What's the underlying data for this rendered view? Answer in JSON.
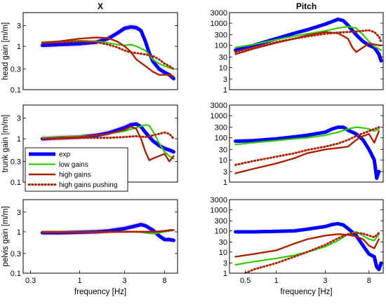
{
  "figure": {
    "columns": [
      "X",
      "Pitch"
    ],
    "xlabel": "frequency [Hz]",
    "ylabels": [
      "head gain [m/m]",
      "trunk gain [m/m]",
      "pelvis gain [m/m]"
    ]
  },
  "colors": {
    "exp": "#0000ff",
    "low gains": "#33cc00",
    "high gains": "#aa2200",
    "high gains pushing": "#aa2200",
    "band": "#ffccee"
  },
  "legend": {
    "placement": "left, middle row",
    "entries": [
      "exp",
      "low gains",
      "high gains",
      "high gains pushing"
    ]
  },
  "chart_data": [
    {
      "type": "line",
      "row": 0,
      "col": 0,
      "title": "X",
      "ylabel": "head gain [m/m]",
      "xlabel": "",
      "xscale": "log",
      "yscale": "log",
      "xlim": [
        0.25,
        11
      ],
      "ylim": [
        0.1,
        6
      ],
      "xticks": [],
      "yticks": [
        0.1,
        0.3,
        1,
        3
      ],
      "ytick_labels": [
        "0.1",
        "0.3",
        "1",
        "3"
      ],
      "series": [
        {
          "name": "exp",
          "x": [
            0.4,
            0.6,
            1,
            1.5,
            2,
            2.5,
            3,
            3.5,
            4,
            4.5,
            5,
            5.5,
            6,
            7,
            8,
            9,
            10
          ],
          "y": [
            1.05,
            1.1,
            1.15,
            1.25,
            1.5,
            2.0,
            2.6,
            2.8,
            2.7,
            2.3,
            1.3,
            0.7,
            0.45,
            0.3,
            0.25,
            0.22,
            0.18
          ]
        },
        {
          "name": "low gains",
          "x": [
            0.4,
            0.6,
            1,
            1.5,
            2,
            2.5,
            3,
            3.5,
            4,
            5,
            6,
            7,
            8,
            9,
            10
          ],
          "y": [
            1.25,
            1.3,
            1.35,
            1.3,
            1.2,
            1.1,
            1.05,
            1.1,
            1.0,
            0.8,
            0.5,
            0.4,
            0.35,
            0.32,
            0.3
          ]
        },
        {
          "name": "high gains",
          "x": [
            0.4,
            0.6,
            1,
            1.5,
            2,
            2.5,
            3,
            3.5,
            4,
            5,
            6,
            7,
            8,
            9,
            10
          ],
          "y": [
            1.2,
            1.3,
            1.5,
            1.6,
            1.55,
            1.3,
            1.0,
            0.75,
            0.5,
            0.35,
            0.26,
            0.22,
            0.22,
            0.22,
            0.2
          ]
        },
        {
          "name": "high gains pushing",
          "x": [
            0.4,
            0.6,
            1,
            1.5,
            2,
            2.5,
            3,
            3.5,
            4,
            5,
            6,
            7,
            8,
            9,
            10
          ],
          "y": [
            1.2,
            1.25,
            1.3,
            1.25,
            1.1,
            0.95,
            0.8,
            0.72,
            0.7,
            0.65,
            0.6,
            0.5,
            0.4,
            0.35,
            0.3
          ]
        }
      ]
    },
    {
      "type": "line",
      "row": 0,
      "col": 1,
      "title": "Pitch",
      "ylabel": "",
      "xlabel": "",
      "xscale": "log",
      "yscale": "log",
      "xlim": [
        0.35,
        11
      ],
      "ylim": [
        1,
        3000
      ],
      "xticks": [],
      "yticks": [
        1,
        3,
        10,
        30,
        100,
        300,
        1000,
        3000
      ],
      "ytick_labels": [
        "1",
        "3",
        "10",
        "30",
        "100",
        "300",
        "1000",
        "3000"
      ],
      "series": [
        {
          "name": "exp",
          "x": [
            0.4,
            0.6,
            1,
            1.5,
            2,
            3,
            4,
            4.5,
            5,
            6,
            7,
            8,
            9,
            10,
            10.5
          ],
          "y": [
            60,
            100,
            200,
            350,
            500,
            900,
            1500,
            1300,
            800,
            300,
            150,
            100,
            80,
            40,
            20
          ]
        },
        {
          "name": "low gains",
          "x": [
            0.4,
            0.6,
            1,
            1.5,
            2,
            3,
            4,
            5,
            6,
            7,
            8,
            9,
            10,
            10.5
          ],
          "y": [
            80,
            110,
            180,
            260,
            330,
            450,
            600,
            700,
            600,
            300,
            150,
            90,
            70,
            60
          ]
        },
        {
          "name": "high gains",
          "x": [
            0.4,
            0.6,
            1,
            1.5,
            2,
            3,
            4,
            5,
            5.5,
            6,
            7,
            8,
            9,
            10,
            10.5
          ],
          "y": [
            40,
            70,
            130,
            200,
            280,
            400,
            350,
            200,
            80,
            50,
            80,
            120,
            110,
            100,
            100
          ]
        },
        {
          "name": "high gains pushing",
          "x": [
            0.4,
            0.6,
            1,
            1.5,
            2,
            3,
            4,
            5,
            6,
            7,
            8,
            9,
            10,
            10.5
          ],
          "y": [
            50,
            80,
            140,
            200,
            250,
            330,
            380,
            400,
            420,
            450,
            480,
            400,
            250,
            150
          ]
        }
      ]
    },
    {
      "type": "line",
      "row": 1,
      "col": 0,
      "title": "",
      "ylabel": "trunk gain [m/m]",
      "xlabel": "",
      "xscale": "log",
      "yscale": "log",
      "xlim": [
        0.25,
        11
      ],
      "ylim": [
        0.1,
        6
      ],
      "xticks": [],
      "yticks": [
        0.1,
        0.3,
        1,
        3
      ],
      "ytick_labels": [
        "0.1",
        "0.3",
        "1",
        "3"
      ],
      "series": [
        {
          "name": "exp",
          "x": [
            0.4,
            0.6,
            1,
            1.5,
            2,
            3,
            3.5,
            4,
            4.5,
            5,
            6,
            7,
            8,
            9,
            10
          ],
          "y": [
            1.0,
            1.05,
            1.1,
            1.2,
            1.35,
            1.8,
            2.1,
            2.2,
            1.9,
            1.4,
            0.9,
            0.7,
            0.6,
            0.55,
            0.5
          ]
        },
        {
          "name": "low gains",
          "x": [
            0.4,
            0.6,
            1,
            1.5,
            2,
            3,
            4,
            5,
            5.5,
            6,
            7,
            8,
            9,
            10
          ],
          "y": [
            1.05,
            1.1,
            1.15,
            1.2,
            1.3,
            1.5,
            1.8,
            2.1,
            2.0,
            1.5,
            0.8,
            0.5,
            0.4,
            0.35
          ]
        },
        {
          "name": "high gains",
          "x": [
            0.4,
            0.6,
            1,
            1.5,
            2,
            3,
            3.5,
            4,
            4.5,
            5,
            5.5,
            6,
            7,
            8,
            9,
            10
          ],
          "y": [
            1.0,
            1.05,
            1.1,
            1.2,
            1.3,
            1.6,
            1.9,
            1.7,
            1.0,
            0.5,
            0.32,
            0.35,
            0.4,
            0.45,
            0.3,
            0.4
          ]
        },
        {
          "name": "high gains pushing",
          "x": [
            0.4,
            0.6,
            1,
            1.5,
            2,
            3,
            4,
            5,
            6,
            7,
            8,
            9,
            10
          ],
          "y": [
            1.0,
            1.0,
            1.05,
            1.05,
            1.05,
            1.1,
            1.15,
            1.1,
            1.2,
            1.3,
            1.4,
            1.3,
            1.0
          ]
        }
      ]
    },
    {
      "type": "line",
      "row": 1,
      "col": 1,
      "title": "",
      "ylabel": "",
      "xlabel": "",
      "xscale": "log",
      "yscale": "log",
      "xlim": [
        0.35,
        11
      ],
      "ylim": [
        1,
        3000
      ],
      "xticks": [],
      "yticks": [
        1,
        3,
        10,
        30,
        100,
        300,
        1000,
        3000
      ],
      "ytick_labels": [
        "1",
        "3",
        "10",
        "30",
        "100",
        "300",
        "1000",
        "3000"
      ],
      "series": [
        {
          "name": "exp",
          "x": [
            0.4,
            0.6,
            1,
            1.5,
            2,
            3,
            3.5,
            4,
            4.5,
            5,
            6,
            7,
            8,
            9,
            9.5,
            10
          ],
          "y": [
            70,
            75,
            90,
            110,
            130,
            180,
            250,
            300,
            300,
            220,
            150,
            80,
            30,
            10,
            1.5,
            3
          ]
        },
        {
          "name": "low gains",
          "x": [
            0.4,
            0.6,
            1,
            1.5,
            2,
            3,
            4,
            5,
            6,
            7,
            8,
            9,
            10
          ],
          "y": [
            50,
            60,
            75,
            90,
            100,
            130,
            180,
            250,
            300,
            280,
            250,
            200,
            250
          ]
        },
        {
          "name": "high gains",
          "x": [
            0.4,
            0.6,
            1,
            1.5,
            2,
            3,
            4,
            5,
            6,
            7,
            8,
            9,
            10
          ],
          "y": [
            2.5,
            4,
            7,
            12,
            20,
            30,
            35,
            40,
            80,
            120,
            150,
            60,
            200
          ]
        },
        {
          "name": "high gains pushing",
          "x": [
            0.4,
            0.6,
            1,
            1.5,
            2,
            3,
            4,
            5,
            6,
            7,
            8,
            9,
            10
          ],
          "y": [
            6,
            9,
            14,
            20,
            28,
            40,
            55,
            80,
            120,
            160,
            200,
            250,
            300
          ]
        }
      ]
    },
    {
      "type": "line",
      "row": 2,
      "col": 0,
      "title": "",
      "ylabel": "pelvis gain [m/m]",
      "xlabel": "frequency [Hz]",
      "xscale": "log",
      "yscale": "log",
      "xlim": [
        0.25,
        11
      ],
      "ylim": [
        0.1,
        6
      ],
      "xticks": [
        0.3,
        1,
        3,
        8
      ],
      "xtick_labels": [
        "0.3",
        "1",
        "3",
        "8"
      ],
      "yticks": [
        0.1,
        0.3,
        1,
        3
      ],
      "ytick_labels": [
        "0.1",
        "0.3",
        "1",
        "3"
      ],
      "series": [
        {
          "name": "exp",
          "x": [
            0.4,
            0.6,
            1,
            1.5,
            2,
            3,
            4,
            4.5,
            5,
            6,
            7,
            8,
            9,
            10
          ],
          "y": [
            0.95,
            0.95,
            0.98,
            1.0,
            1.05,
            1.2,
            1.4,
            1.5,
            1.4,
            1.1,
            0.8,
            0.65,
            0.65,
            0.62
          ]
        },
        {
          "name": "low gains",
          "x": [
            0.4,
            0.6,
            1,
            1.5,
            2,
            3,
            4,
            5,
            6,
            7,
            8,
            9,
            10
          ],
          "y": [
            1.0,
            1.0,
            1.0,
            1.0,
            1.0,
            1.0,
            1.0,
            0.95,
            0.9,
            0.95,
            1.0,
            1.05,
            1.1
          ]
        },
        {
          "name": "high gains",
          "x": [
            0.4,
            0.6,
            1,
            1.5,
            2,
            3,
            4,
            5,
            6,
            7,
            8,
            9,
            10
          ],
          "y": [
            0.98,
            0.98,
            0.98,
            0.99,
            1.0,
            1.0,
            1.0,
            1.0,
            1.0,
            1.02,
            1.05,
            1.1,
            1.1
          ]
        },
        {
          "name": "high gains pushing",
          "x": [
            0.4,
            0.6,
            1,
            1.5,
            2,
            3,
            4,
            5,
            6,
            7,
            8,
            9,
            10
          ],
          "y": [
            0.98,
            0.98,
            0.98,
            0.98,
            0.99,
            1.0,
            1.0,
            1.0,
            1.0,
            1.02,
            1.05,
            1.08,
            1.1
          ]
        }
      ]
    },
    {
      "type": "line",
      "row": 2,
      "col": 1,
      "title": "",
      "ylabel": "",
      "xlabel": "frequency [Hz]",
      "xscale": "log",
      "yscale": "log",
      "xlim": [
        0.35,
        11
      ],
      "ylim": [
        1,
        3000
      ],
      "xticks": [
        0.5,
        1,
        3,
        8
      ],
      "xtick_labels": [
        "0.5",
        "1",
        "3",
        "8"
      ],
      "yticks": [
        1,
        3,
        10,
        30,
        100,
        300,
        1000,
        3000
      ],
      "ytick_labels": [
        "1",
        "3",
        "10",
        "30",
        "100",
        "300",
        "1000",
        "3000"
      ],
      "series": [
        {
          "name": "exp",
          "x": [
            0.4,
            0.6,
            1,
            1.5,
            2,
            3,
            3.5,
            4,
            4.5,
            5,
            6,
            7,
            8,
            9,
            9.5,
            10,
            10.5
          ],
          "y": [
            90,
            90,
            95,
            100,
            120,
            160,
            200,
            220,
            190,
            130,
            60,
            20,
            8,
            6,
            2,
            1.5,
            3
          ]
        },
        {
          "name": "low gains",
          "x": [
            0.4,
            0.6,
            1,
            1.5,
            2,
            3,
            4,
            5,
            6,
            7,
            8,
            9,
            10
          ],
          "y": [
            2.5,
            3.5,
            5,
            7,
            10,
            18,
            35,
            70,
            90,
            60,
            40,
            35,
            70
          ]
        },
        {
          "name": "high gains",
          "x": [
            0.4,
            0.6,
            1,
            1.5,
            2,
            3,
            4,
            5,
            6,
            7,
            8,
            9,
            10
          ],
          "y": [
            6,
            8,
            12,
            25,
            40,
            60,
            70,
            65,
            55,
            40,
            20,
            15,
            40
          ]
        },
        {
          "name": "high gains pushing",
          "x": [
            0.5,
            0.6,
            1,
            1.5,
            2,
            3,
            4,
            5,
            6,
            7,
            8,
            9,
            10
          ],
          "y": [
            1.0,
            1.5,
            3,
            6,
            10,
            22,
            45,
            70,
            80,
            75,
            60,
            50,
            80
          ]
        }
      ]
    }
  ]
}
